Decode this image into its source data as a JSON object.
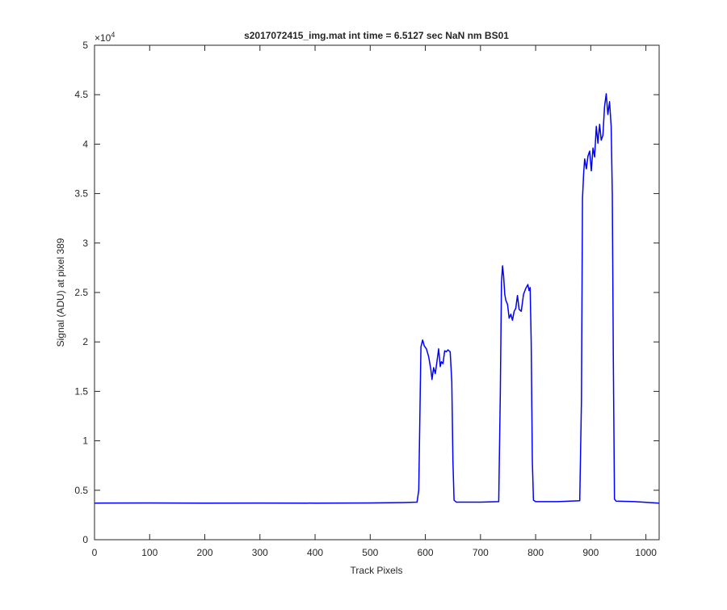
{
  "chart_data": {
    "type": "line",
    "title": "s2017072415_img.mat int time = 6.5127 sec  NaN nm BS01",
    "xlabel": "Track Pixels",
    "ylabel": "Signal (ADU) at pixel 389",
    "xlim": [
      0,
      1024
    ],
    "ylim": [
      0,
      50000
    ],
    "x_ticks": [
      0,
      100,
      200,
      300,
      400,
      500,
      600,
      700,
      800,
      900,
      1000
    ],
    "x_tick_labels": [
      "0",
      "100",
      "200",
      "300",
      "400",
      "500",
      "600",
      "700",
      "800",
      "900",
      "1000"
    ],
    "y_ticks": [
      0,
      5000,
      10000,
      15000,
      20000,
      25000,
      30000,
      35000,
      40000,
      45000,
      50000
    ],
    "y_tick_labels": [
      "0",
      "0.5",
      "1",
      "1.5",
      "2",
      "2.5",
      "3",
      "3.5",
      "4",
      "4.5",
      "5"
    ],
    "y_exponent_label": "×10",
    "y_exponent_power": "4",
    "grid": false,
    "line_color": "#0000ff",
    "series": [
      {
        "x": [
          0,
          100,
          200,
          300,
          400,
          500,
          560,
          585,
          588,
          590,
          592,
          595,
          598,
          602,
          606,
          610,
          612,
          615,
          618,
          621,
          624,
          627,
          629,
          632,
          635,
          638,
          641,
          645,
          648,
          650,
          652,
          656,
          700,
          733,
          736,
          738,
          740,
          742,
          744,
          746,
          749,
          752,
          755,
          758,
          761,
          764,
          767,
          770,
          774,
          778,
          782,
          786,
          788,
          790,
          792,
          794,
          796,
          800,
          840,
          880,
          883,
          885,
          887,
          889,
          892,
          895,
          898,
          901,
          904,
          907,
          910,
          913,
          916,
          919,
          922,
          925,
          928,
          931,
          934,
          937,
          939,
          941,
          943,
          946,
          980,
          1024
        ],
        "y": [
          3700,
          3720,
          3700,
          3710,
          3700,
          3720,
          3760,
          3800,
          5000,
          12000,
          19500,
          20200,
          19600,
          19300,
          18500,
          17200,
          16200,
          17400,
          16800,
          18000,
          19300,
          17500,
          18000,
          17800,
          19100,
          19000,
          19200,
          19000,
          16000,
          8000,
          4000,
          3800,
          3800,
          3850,
          15000,
          26000,
          27700,
          26600,
          24800,
          24200,
          23800,
          22400,
          22800,
          22200,
          23100,
          23400,
          24700,
          23300,
          23100,
          24800,
          25400,
          25800,
          25200,
          25500,
          20000,
          8000,
          4000,
          3850,
          3850,
          3950,
          14000,
          34500,
          37000,
          38500,
          37500,
          38800,
          39300,
          37300,
          39600,
          38700,
          41800,
          40100,
          42000,
          40400,
          40900,
          43800,
          45100,
          43000,
          44300,
          41800,
          35000,
          18000,
          4100,
          3900,
          3850,
          3700
        ]
      }
    ]
  }
}
